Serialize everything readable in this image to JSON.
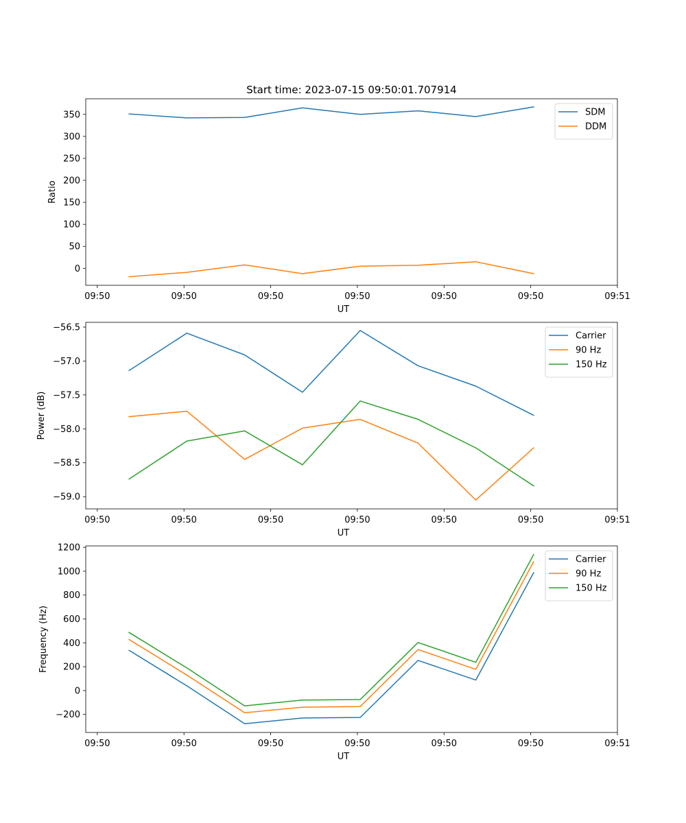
{
  "figure": {
    "title": "Start time: 2023-07-15 09:50:01.707914"
  },
  "colors": {
    "series1": "#1f77b4",
    "series2": "#ff7f0e",
    "series3": "#2ca02c",
    "axis": "#000000",
    "legend_border": "#cccccc"
  },
  "chart_data": [
    {
      "type": "line",
      "title": "Start time: 2023-07-15 09:50:01.707914",
      "xlabel": "UT",
      "ylabel": "Ratio",
      "xlim": [
        0,
        9.2
      ],
      "ylim": [
        -38.5,
        385.5
      ],
      "x": [
        0.75,
        1.75,
        2.75,
        3.75,
        4.75,
        5.75,
        6.75,
        7.75
      ],
      "xticks": [
        0.2,
        1.7,
        3.2,
        4.7,
        6.2,
        7.7,
        9.2
      ],
      "xtick_labels": [
        "09:50",
        "09:50",
        "09:50",
        "09:50",
        "09:50",
        "09:50",
        "09:51"
      ],
      "yticks": [
        0,
        50,
        100,
        150,
        200,
        250,
        300,
        350
      ],
      "ytick_labels": [
        "0",
        "50",
        "100",
        "150",
        "200",
        "250",
        "300",
        "350"
      ],
      "legend_position": "upper right",
      "series": [
        {
          "name": "SDM",
          "color_key": "series1",
          "values": [
            351,
            342,
            343,
            365,
            350,
            358,
            345,
            367
          ]
        },
        {
          "name": "DDM",
          "color_key": "series2",
          "values": [
            -19,
            -9,
            8,
            -12,
            5,
            7,
            15,
            -12
          ]
        }
      ]
    },
    {
      "type": "line",
      "title": "",
      "xlabel": "UT",
      "ylabel": "Power (dB)",
      "xlim": [
        0,
        9.2
      ],
      "ylim": [
        -59.18,
        -56.43
      ],
      "x": [
        0.75,
        1.75,
        2.75,
        3.75,
        4.75,
        5.75,
        6.75,
        7.75
      ],
      "xticks": [
        0.2,
        1.7,
        3.2,
        4.7,
        6.2,
        7.7,
        9.2
      ],
      "xtick_labels": [
        "09:50",
        "09:50",
        "09:50",
        "09:50",
        "09:50",
        "09:50",
        "09:51"
      ],
      "yticks": [
        -59.0,
        -58.5,
        -58.0,
        -57.5,
        -57.0,
        -56.5
      ],
      "ytick_labels": [
        "−59.0",
        "−58.5",
        "−58.0",
        "−57.5",
        "−57.0",
        "−56.5"
      ],
      "legend_position": "upper right",
      "series": [
        {
          "name": "Carrier",
          "color_key": "series1",
          "values": [
            -57.14,
            -56.59,
            -56.91,
            -57.46,
            -56.55,
            -57.07,
            -57.37,
            -57.8
          ]
        },
        {
          "name": "90 Hz",
          "color_key": "series2",
          "values": [
            -57.82,
            -57.74,
            -58.45,
            -57.99,
            -57.86,
            -58.21,
            -59.05,
            -58.28
          ]
        },
        {
          "name": "150 Hz",
          "color_key": "series3",
          "values": [
            -58.74,
            -58.18,
            -58.03,
            -58.53,
            -57.59,
            -57.86,
            -58.28,
            -58.84
          ]
        }
      ]
    },
    {
      "type": "line",
      "title": "",
      "xlabel": "UT",
      "ylabel": "Frequency (Hz)",
      "xlim": [
        0,
        9.2
      ],
      "ylim": [
        -351,
        1212
      ],
      "x": [
        0.75,
        1.75,
        2.75,
        3.75,
        4.75,
        5.75,
        6.75,
        7.75
      ],
      "xticks": [
        0.2,
        1.7,
        3.2,
        4.7,
        6.2,
        7.7,
        9.2
      ],
      "xtick_labels": [
        "09:50",
        "09:50",
        "09:50",
        "09:50",
        "09:50",
        "09:50",
        "09:51"
      ],
      "yticks": [
        -200,
        0,
        200,
        400,
        600,
        800,
        1000,
        1200
      ],
      "ytick_labels": [
        "−200",
        "0",
        "200",
        "400",
        "600",
        "800",
        "1000",
        "1200"
      ],
      "legend_position": "upper right",
      "series": [
        {
          "name": "Carrier",
          "color_key": "series1",
          "values": [
            337,
            40,
            -278,
            -230,
            -225,
            253,
            88,
            988
          ]
        },
        {
          "name": "90 Hz",
          "color_key": "series2",
          "values": [
            428,
            130,
            -186,
            -139,
            -134,
            344,
            178,
            1080
          ]
        },
        {
          "name": "150 Hz",
          "color_key": "series3",
          "values": [
            487,
            190,
            -128,
            -80,
            -75,
            403,
            237,
            1140
          ]
        }
      ]
    }
  ]
}
